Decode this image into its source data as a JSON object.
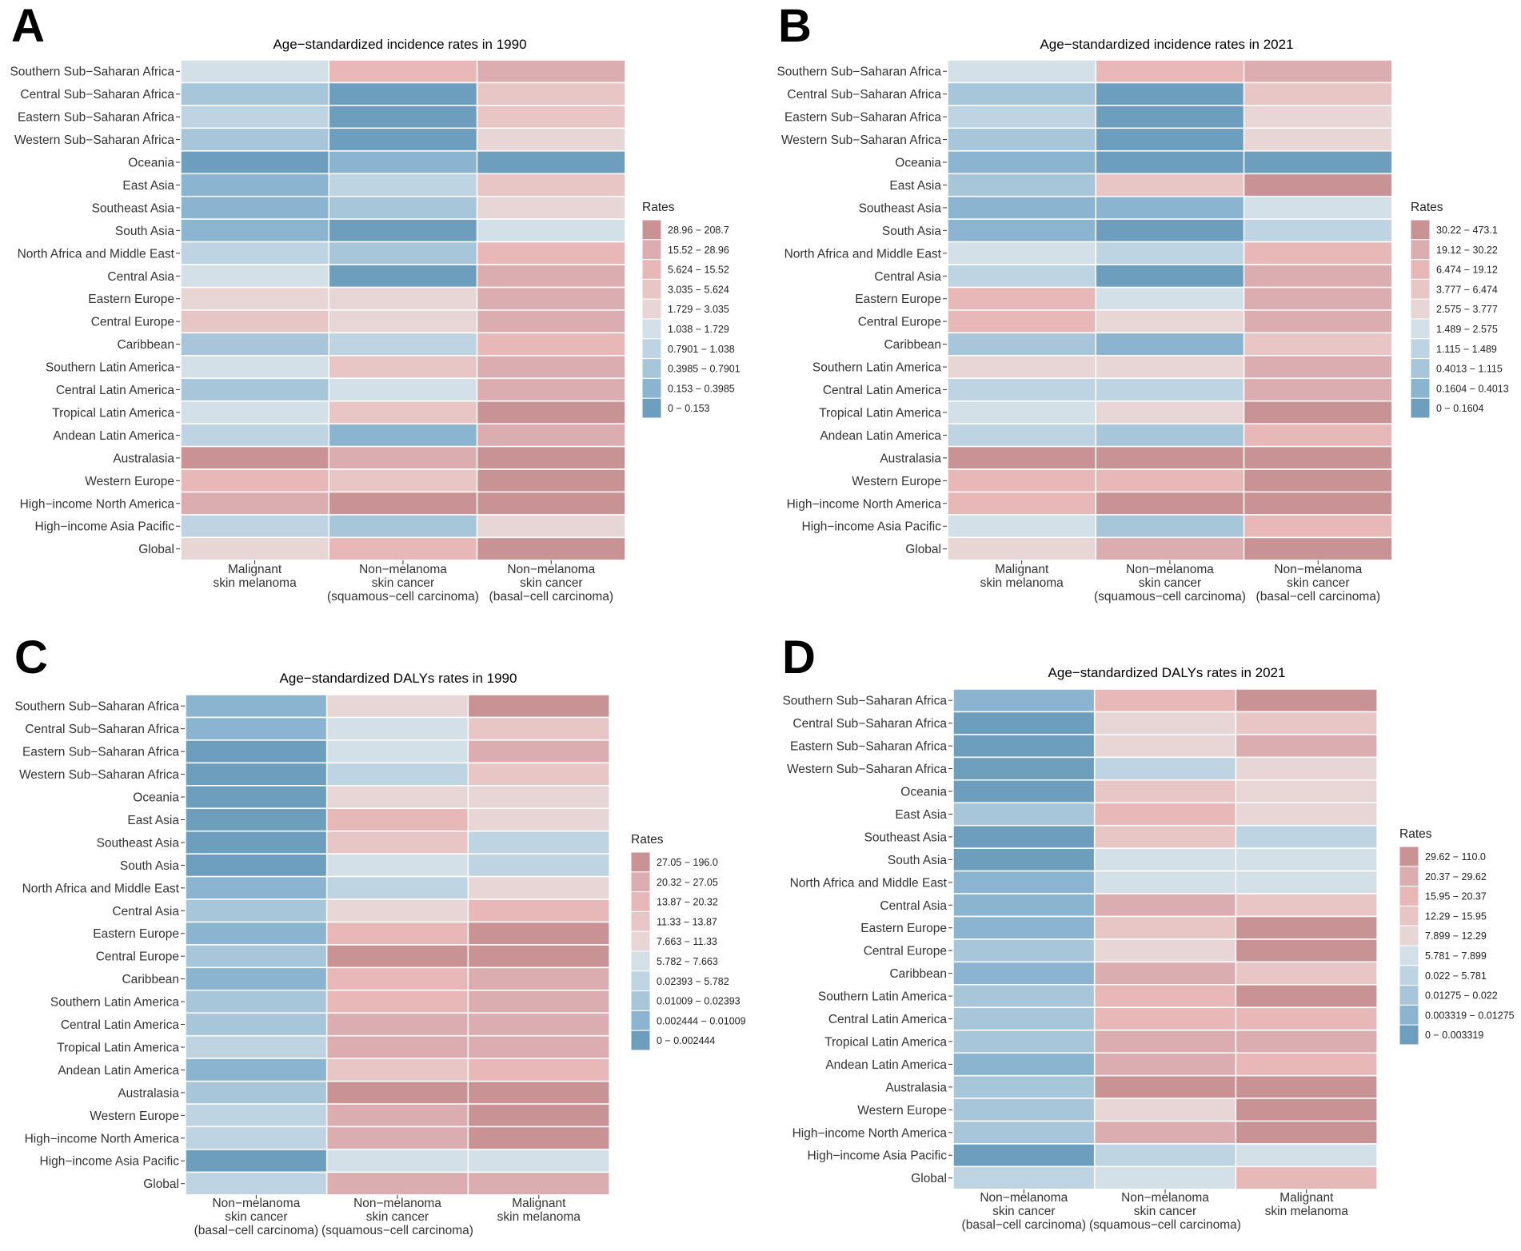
{
  "figure": {
    "region_labels": [
      "Southern Sub−Saharan Africa",
      "Central Sub−Saharan Africa",
      "Eastern Sub−Saharan Africa",
      "Western Sub−Saharan Africa",
      "Oceania",
      "East Asia",
      "Southeast Asia",
      "South Asia",
      "North Africa and Middle East",
      "Central Asia",
      "Eastern Europe",
      "Central Europe",
      "Caribbean",
      "Southern Latin America",
      "Central Latin America",
      "Tropical Latin America",
      "Andean Latin America",
      "Australasia",
      "Western Europe",
      "High−income North America",
      "High−income Asia Pacific",
      "Global"
    ],
    "color_scale": [
      "#6d9ebd",
      "#8ab4cf",
      "#a8c6da",
      "#bed4e2",
      "#d3e0e8",
      "#e8d6d6",
      "#e8c6c6",
      "#e8b8b8",
      "#dcadb0",
      "#c99294"
    ],
    "legend_title": "Rates"
  },
  "chart_data": [
    {
      "panel": "A",
      "type": "heatmap",
      "title": "Age−standardized incidence rates in 1990",
      "columns": [
        "Malignant\nskin melanoma",
        "Non−melanoma\nskin cancer\n(squamous−cell carcinoma)",
        "Non−melanoma\nskin cancer\n(basal−cell carcinoma)"
      ],
      "legend_bins": [
        "28.96 − 208.7",
        "15.52 − 28.96",
        "5.624 − 15.52",
        "3.035 − 5.624",
        "1.729 − 3.035",
        "1.038 − 1.729",
        "0.7901 − 1.038",
        "0.3985 − 0.7901",
        "0.153 − 0.3985",
        "0 − 0.153"
      ],
      "cell_bins": [
        [
          4,
          7,
          8
        ],
        [
          2,
          0,
          6
        ],
        [
          3,
          0,
          6
        ],
        [
          2,
          0,
          5
        ],
        [
          0,
          1,
          0
        ],
        [
          1,
          3,
          6
        ],
        [
          1,
          2,
          5
        ],
        [
          1,
          0,
          4
        ],
        [
          3,
          2,
          7
        ],
        [
          4,
          0,
          8
        ],
        [
          5,
          5,
          8
        ],
        [
          6,
          5,
          8
        ],
        [
          2,
          3,
          7
        ],
        [
          4,
          6,
          8
        ],
        [
          2,
          4,
          8
        ],
        [
          4,
          6,
          9
        ],
        [
          3,
          1,
          8
        ],
        [
          9,
          8,
          9
        ],
        [
          7,
          6,
          9
        ],
        [
          8,
          9,
          9
        ],
        [
          3,
          2,
          5
        ],
        [
          5,
          7,
          9
        ]
      ]
    },
    {
      "panel": "B",
      "type": "heatmap",
      "title": "Age−standardized incidence rates in 2021",
      "columns": [
        "Malignant\nskin melanoma",
        "Non−melanoma\nskin cancer\n(squamous−cell carcinoma)",
        "Non−melanoma\nskin cancer\n(basal−cell carcinoma)"
      ],
      "legend_bins": [
        "30.22 − 473.1",
        "19.12 − 30.22",
        "6.474 − 19.12",
        "3.777 − 6.474",
        "2.575 − 3.777",
        "1.489 − 2.575",
        "1.115 − 1.489",
        "0.4013 − 1.115",
        "0.1604 − 0.4013",
        "0 − 0.1604"
      ],
      "cell_bins": [
        [
          4,
          7,
          8
        ],
        [
          2,
          0,
          6
        ],
        [
          3,
          0,
          5
        ],
        [
          2,
          0,
          5
        ],
        [
          1,
          0,
          0
        ],
        [
          2,
          6,
          9
        ],
        [
          1,
          1,
          4
        ],
        [
          1,
          0,
          3
        ],
        [
          4,
          3,
          7
        ],
        [
          3,
          0,
          8
        ],
        [
          7,
          4,
          8
        ],
        [
          7,
          5,
          8
        ],
        [
          2,
          1,
          6
        ],
        [
          5,
          5,
          8
        ],
        [
          3,
          3,
          8
        ],
        [
          4,
          5,
          9
        ],
        [
          3,
          2,
          7
        ],
        [
          9,
          9,
          9
        ],
        [
          7,
          7,
          9
        ],
        [
          7,
          9,
          9
        ],
        [
          4,
          2,
          7
        ],
        [
          5,
          8,
          9
        ]
      ]
    },
    {
      "panel": "C",
      "type": "heatmap",
      "title": "Age−standardized DALYs rates in 1990",
      "columns": [
        "Non−melanoma\nskin cancer\n(basal−cell carcinoma)",
        "Non−melanoma\nskin cancer\n(squamous−cell carcinoma)",
        "Malignant\nskin melanoma"
      ],
      "legend_bins": [
        "27.05 − 196.0",
        "20.32 − 27.05",
        "13.87 − 20.32",
        "11.33 − 13.87",
        "7.663 − 11.33",
        "5.782 − 7.663",
        "0.02393 − 5.782",
        "0.01009 − 0.02393",
        "0.002444 − 0.01009",
        "0 − 0.002444"
      ],
      "cell_bins": [
        [
          1,
          5,
          9
        ],
        [
          1,
          4,
          6
        ],
        [
          0,
          4,
          8
        ],
        [
          0,
          3,
          6
        ],
        [
          0,
          5,
          5
        ],
        [
          0,
          7,
          5
        ],
        [
          0,
          6,
          3
        ],
        [
          0,
          4,
          3
        ],
        [
          1,
          3,
          5
        ],
        [
          2,
          5,
          7
        ],
        [
          1,
          7,
          9
        ],
        [
          2,
          9,
          9
        ],
        [
          1,
          7,
          8
        ],
        [
          2,
          7,
          8
        ],
        [
          2,
          8,
          8
        ],
        [
          3,
          8,
          8
        ],
        [
          1,
          6,
          7
        ],
        [
          2,
          9,
          9
        ],
        [
          3,
          8,
          9
        ],
        [
          3,
          8,
          9
        ],
        [
          0,
          4,
          4
        ],
        [
          3,
          8,
          8
        ]
      ]
    },
    {
      "panel": "D",
      "type": "heatmap",
      "title": "Age−standardized DALYs rates in 2021",
      "columns": [
        "Non−melanoma\nskin cancer\n(basal−cell carcinoma)",
        "Non−melanoma\nskin cancer\n(squamous−cell carcinoma)",
        "Malignant\nskin melanoma"
      ],
      "legend_bins": [
        "29.62 − 110.0",
        "20.37 − 29.62",
        "15.95 − 20.37",
        "12.29 − 15.95",
        "7.899 − 12.29",
        "5.781 − 7.899",
        "0.022 − 5.781",
        "0.01275 − 0.022",
        "0.003319 − 0.01275",
        "0 − 0.003319"
      ],
      "cell_bins": [
        [
          1,
          7,
          9
        ],
        [
          0,
          5,
          6
        ],
        [
          0,
          5,
          8
        ],
        [
          0,
          3,
          5
        ],
        [
          0,
          6,
          5
        ],
        [
          2,
          7,
          5
        ],
        [
          0,
          6,
          3
        ],
        [
          0,
          4,
          4
        ],
        [
          1,
          4,
          4
        ],
        [
          1,
          8,
          6
        ],
        [
          1,
          6,
          9
        ],
        [
          2,
          5,
          9
        ],
        [
          1,
          8,
          6
        ],
        [
          2,
          7,
          9
        ],
        [
          2,
          7,
          7
        ],
        [
          2,
          8,
          8
        ],
        [
          1,
          8,
          7
        ],
        [
          2,
          9,
          9
        ],
        [
          2,
          5,
          9
        ],
        [
          2,
          8,
          9
        ],
        [
          0,
          3,
          4
        ],
        [
          3,
          4,
          7
        ]
      ]
    }
  ]
}
